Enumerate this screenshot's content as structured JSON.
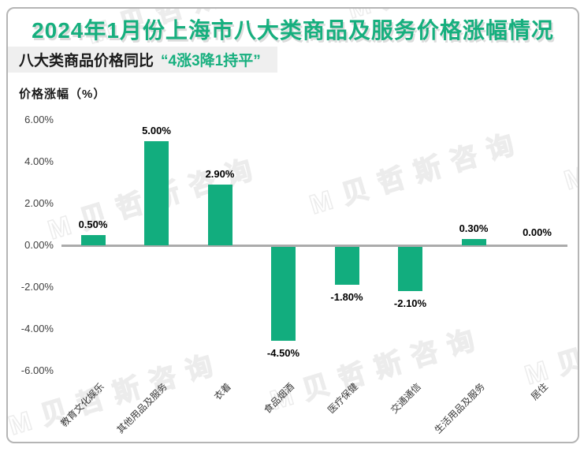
{
  "title": "2024年1月份上海市八大类商品及服务价格涨幅情况",
  "subtitle": {
    "label": "八大类商品价格同比",
    "highlight": "“4涨3降1持平”"
  },
  "watermark": {
    "logo": "M",
    "text": "贝哲斯咨询"
  },
  "colors": {
    "accent_green": "#12ad7e",
    "title_green": "#16af7e",
    "axis_gray": "#ababab",
    "subtitle_bg": "#efefef"
  },
  "chart_data": {
    "type": "bar",
    "title": "价格涨幅（%）",
    "categories": [
      "教育文化娱乐",
      "其他用品及服务",
      "衣着",
      "食品烟酒",
      "医疗保健",
      "交通通信",
      "生活用品及服务",
      "居住"
    ],
    "values": [
      0.5,
      5.0,
      2.9,
      -4.5,
      -1.8,
      -2.1,
      0.3,
      0.0
    ],
    "data_labels": [
      "0.50%",
      "5.00%",
      "2.90%",
      "-4.50%",
      "-1.80%",
      "-2.10%",
      "0.30%",
      "0.00%"
    ],
    "y_ticks": [
      "6.00%",
      "4.00%",
      "2.00%",
      "0.00%",
      "-2.00%",
      "-4.00%",
      "-6.00%"
    ],
    "y_tick_values": [
      6,
      4,
      2,
      0,
      -2,
      -4,
      -6
    ],
    "ylim": [
      -6,
      6
    ],
    "bar_color": "#12ad7e",
    "grid": false,
    "legend": "none"
  }
}
